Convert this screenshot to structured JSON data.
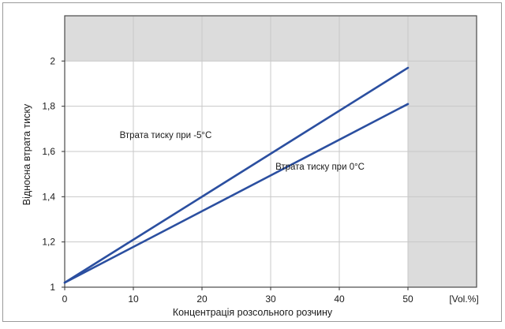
{
  "chart_data": {
    "type": "line",
    "xlabel": "Концентрація розсольного розчину",
    "ylabel": "Відносна втрата тиску",
    "x_unit_label": "[Vol.%]",
    "xlim": [
      0,
      60
    ],
    "ylim": [
      1,
      2.2
    ],
    "x_ticks": [
      {
        "value": 0,
        "label": "0"
      },
      {
        "value": 10,
        "label": "10"
      },
      {
        "value": 20,
        "label": "20"
      },
      {
        "value": 30,
        "label": "30"
      },
      {
        "value": 40,
        "label": "40"
      },
      {
        "value": 50,
        "label": "50"
      }
    ],
    "y_ticks": [
      {
        "value": 1.0,
        "label": "1"
      },
      {
        "value": 1.2,
        "label": "1,2"
      },
      {
        "value": 1.4,
        "label": "1,4"
      },
      {
        "value": 1.6,
        "label": "1,6"
      },
      {
        "value": 1.8,
        "label": "1,8"
      },
      {
        "value": 2.0,
        "label": "2"
      }
    ],
    "shaded_regions": [
      {
        "x": [
          0,
          60
        ],
        "y": [
          2.0,
          2.2
        ]
      },
      {
        "x": [
          50,
          60
        ],
        "y": [
          1.0,
          2.2
        ]
      }
    ],
    "grid": true,
    "series": [
      {
        "name": "Втрата тиску при  -5°C",
        "x": [
          0,
          50
        ],
        "y": [
          1.02,
          1.97
        ]
      },
      {
        "name": "Втрата тиску при  0°C",
        "x": [
          0,
          50
        ],
        "y": [
          1.02,
          1.81
        ]
      }
    ],
    "annotations": [
      {
        "text": "Втрата тиску при  -5°C",
        "x": 8,
        "y": 1.66
      },
      {
        "text": "Втрата тиску при  0°C",
        "x": 30.7,
        "y": 1.52
      }
    ],
    "colors": {
      "line": "#2b4fa0",
      "shade": "#dcdcdc",
      "grid": "#c8c8c8",
      "frame": "#9a9a9a"
    }
  }
}
